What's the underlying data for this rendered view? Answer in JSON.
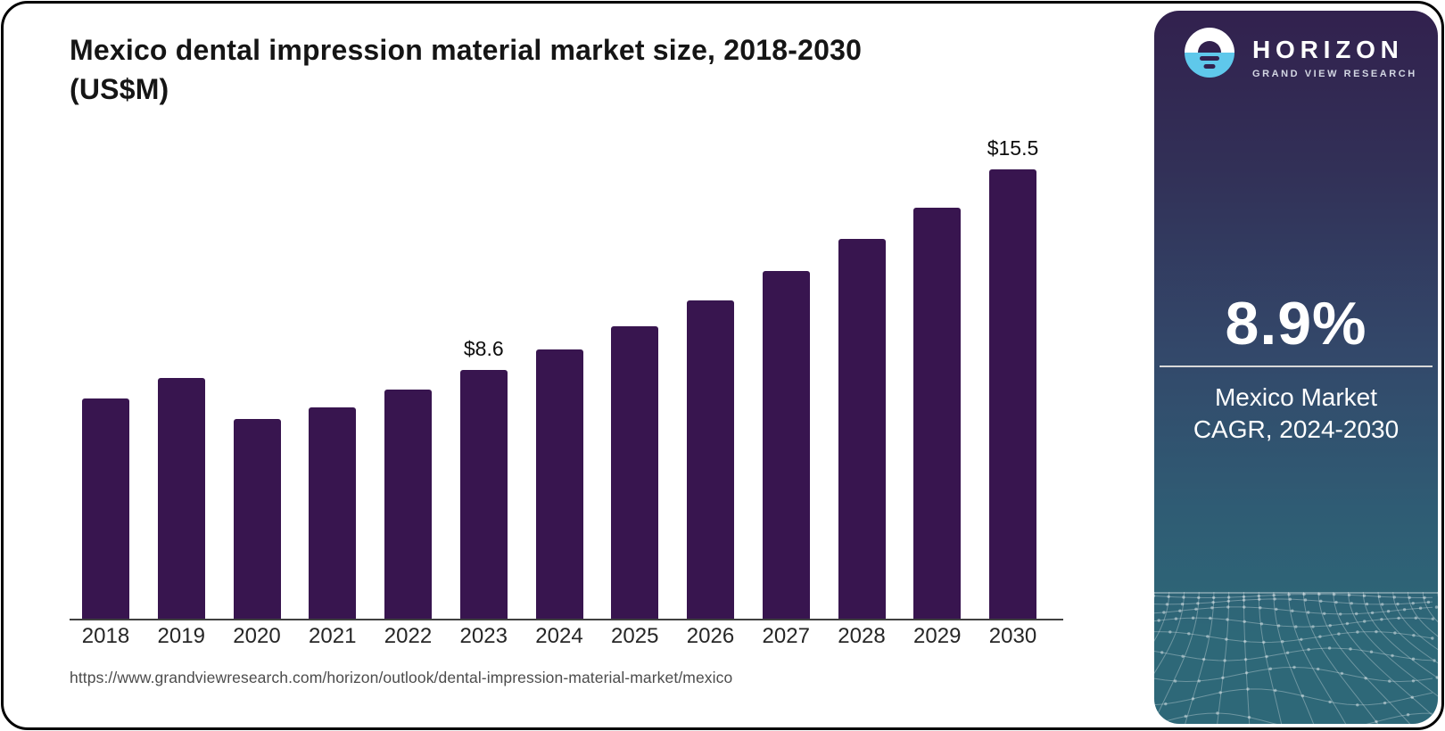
{
  "chart": {
    "title_line1": "Mexico dental impression material market size, 2018-2030",
    "title_line2": "(US$M)",
    "source_url": "https://www.grandviewresearch.com/horizon/outlook/dental-impression-material-market/mexico"
  },
  "chart_data": {
    "type": "bar",
    "title": "Mexico dental impression material market size, 2018-2030 (US$M)",
    "categories": [
      "2018",
      "2019",
      "2020",
      "2021",
      "2022",
      "2023",
      "2024",
      "2025",
      "2026",
      "2027",
      "2028",
      "2029",
      "2030"
    ],
    "values": [
      7.6,
      8.3,
      6.9,
      7.3,
      7.9,
      8.6,
      9.3,
      10.1,
      11.0,
      12.0,
      13.1,
      14.2,
      15.5
    ],
    "bar_labels": {
      "2023": "$8.6",
      "2030": "$15.5"
    },
    "bar_color": "#38154F",
    "xlabel": "",
    "ylabel": "",
    "ylim": [
      0,
      16.5
    ],
    "grid": false,
    "legend": false,
    "x_axis_line": true
  },
  "sidebar": {
    "brand": "HORIZON",
    "sub_brand": "GRAND VIEW RESEARCH",
    "stat_value": "8.9%",
    "stat_label_line1": "Mexico Market",
    "stat_label_line2": "CAGR, 2024-2030",
    "colors": {
      "gradient_top": "#32214E",
      "gradient_middle": "#33486A",
      "gradient_bottom": "#2E6878",
      "logo_blue": "#5FC8EB",
      "divider": "#d9d9d9",
      "mesh_line": "rgba(255,255,255,0.30)"
    }
  }
}
